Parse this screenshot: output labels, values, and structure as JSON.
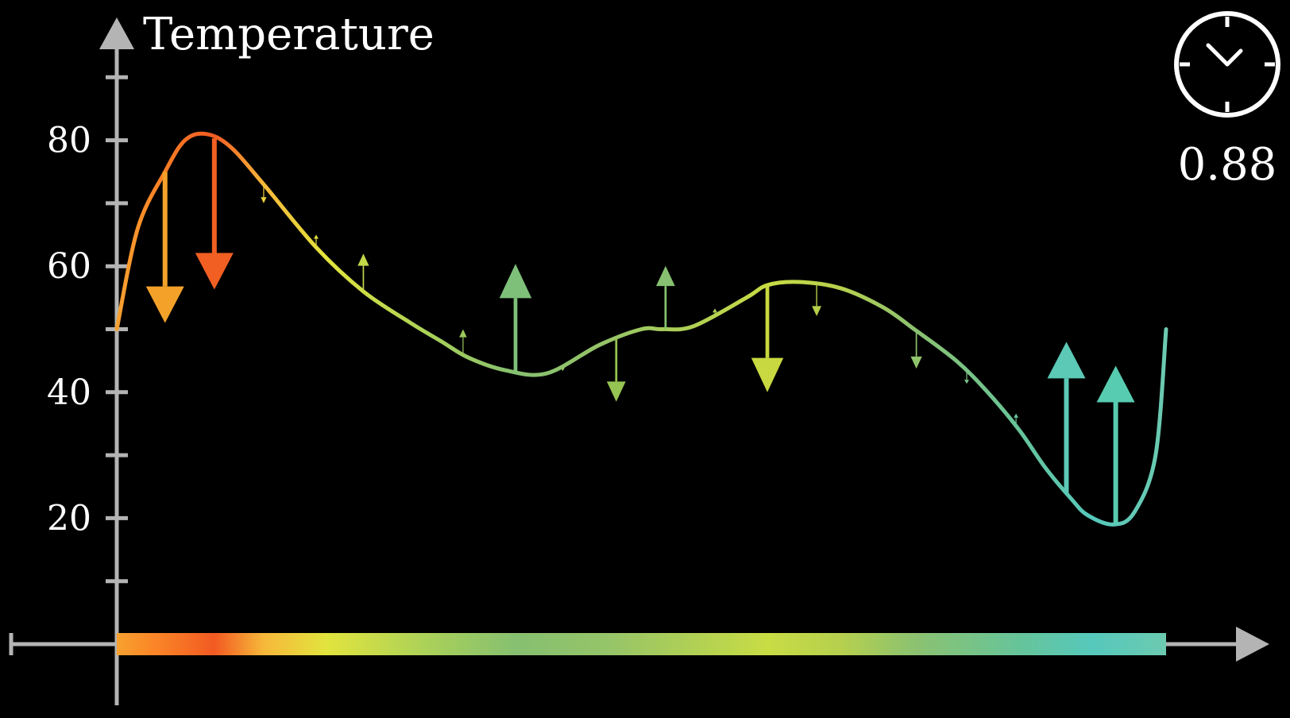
{
  "chart_data": {
    "type": "line",
    "ylabel": "Temperature",
    "xlabel": "",
    "ylim": [
      -8,
      92
    ],
    "xlim": [
      0,
      1
    ],
    "y_ticks_labeled": [
      20,
      40,
      60,
      80
    ],
    "y_ticks_minor": [
      10,
      30,
      50,
      70,
      90
    ],
    "series": [
      {
        "x": [
          0,
          0.02,
          0.046,
          0.065,
          0.085,
          0.108,
          0.14,
          0.19,
          0.235,
          0.28,
          0.31,
          0.335,
          0.37,
          0.41,
          0.46,
          0.5,
          0.52,
          0.55,
          0.6,
          0.62,
          0.65,
          0.69,
          0.73,
          0.76,
          0.8,
          0.83,
          0.86,
          0.885,
          0.91,
          0.925,
          0.95,
          0.97,
          0.99,
          1.0
        ],
        "y": [
          50,
          66,
          75,
          80,
          81,
          79,
          73,
          63,
          56,
          51,
          48,
          45.5,
          43.5,
          43,
          47.5,
          50,
          50,
          50.5,
          55,
          57,
          57.5,
          56.5,
          53.5,
          50,
          45,
          40,
          34,
          28,
          23,
          20.5,
          19,
          21,
          30,
          50
        ]
      }
    ],
    "arrows": [
      {
        "x": 0.046,
        "dy": -24,
        "color": "#f4a12a"
      },
      {
        "x": 0.093,
        "dy": -24,
        "color": "#f25f22"
      },
      {
        "x": 0.14,
        "dy": -3,
        "color": "#ecd33a"
      },
      {
        "x": 0.19,
        "dy": 2,
        "color": "#e0dc3e"
      },
      {
        "x": 0.235,
        "dy": 6,
        "color": "#c4d84a"
      },
      {
        "x": 0.33,
        "dy": 4,
        "color": "#9cc85e"
      },
      {
        "x": 0.38,
        "dy": 17,
        "color": "#7ec07a"
      },
      {
        "x": 0.425,
        "dy": -1,
        "color": "#90c46c"
      },
      {
        "x": 0.476,
        "dy": -10,
        "color": "#96c452"
      },
      {
        "x": 0.523,
        "dy": 10,
        "color": "#86c070"
      },
      {
        "x": 0.57,
        "dy": 1,
        "color": "#a8cc5c"
      },
      {
        "x": 0.62,
        "dy": -17,
        "color": "#c8d840"
      },
      {
        "x": 0.667,
        "dy": -5,
        "color": "#b6d04a"
      },
      {
        "x": 0.762,
        "dy": -6,
        "color": "#90c46c"
      },
      {
        "x": 0.81,
        "dy": -2,
        "color": "#7ec28a"
      },
      {
        "x": 0.857,
        "dy": 2,
        "color": "#6ac49a"
      },
      {
        "x": 0.905,
        "dy": 24,
        "color": "#5cc8b6"
      },
      {
        "x": 0.952,
        "dy": 25,
        "color": "#58ccb0"
      }
    ],
    "gradient_stops": [
      {
        "offset": 0,
        "color": "#f7a130"
      },
      {
        "offset": 0.03,
        "color": "#fb8a28"
      },
      {
        "offset": 0.093,
        "color": "#f25a22"
      },
      {
        "offset": 0.14,
        "color": "#f7b83a"
      },
      {
        "offset": 0.2,
        "color": "#e2e43e"
      },
      {
        "offset": 0.3,
        "color": "#a8d05a"
      },
      {
        "offset": 0.38,
        "color": "#86c070"
      },
      {
        "offset": 0.47,
        "color": "#96c468"
      },
      {
        "offset": 0.56,
        "color": "#b4d252"
      },
      {
        "offset": 0.62,
        "color": "#c8dc44"
      },
      {
        "offset": 0.69,
        "color": "#b6d04e"
      },
      {
        "offset": 0.76,
        "color": "#8cc270"
      },
      {
        "offset": 0.86,
        "color": "#66c49a"
      },
      {
        "offset": 0.93,
        "color": "#56c8bc"
      },
      {
        "offset": 1,
        "color": "#6ccab0"
      }
    ],
    "grid": false,
    "legend": "none"
  },
  "timer": {
    "value": "0.88",
    "icon": "clock-icon"
  },
  "colors": {
    "background": "#000000",
    "axis": "#b4b4b4",
    "text": "#ffffff"
  }
}
